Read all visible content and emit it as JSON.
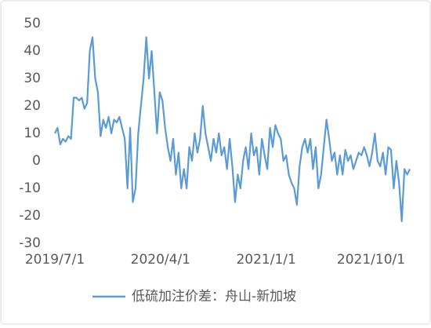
{
  "chart_data": {
    "type": "line",
    "x": [
      "2019/7/1",
      "2019/7/8",
      "2019/7/15",
      "2019/7/22",
      "2019/7/29",
      "2019/8/5",
      "2019/8/12",
      "2019/8/19",
      "2019/8/26",
      "2019/9/2",
      "2019/9/9",
      "2019/9/16",
      "2019/9/23",
      "2019/9/30",
      "2019/10/7",
      "2019/10/14",
      "2019/10/21",
      "2019/10/28",
      "2019/11/4",
      "2019/11/11",
      "2019/11/18",
      "2019/11/25",
      "2019/12/2",
      "2019/12/9",
      "2019/12/16",
      "2019/12/23",
      "2019/12/30",
      "2020/1/6",
      "2020/1/13",
      "2020/1/20",
      "2020/1/27",
      "2020/2/3",
      "2020/2/10",
      "2020/2/17",
      "2020/2/24",
      "2020/3/2",
      "2020/3/9",
      "2020/3/16",
      "2020/3/23",
      "2020/3/30",
      "2020/4/6",
      "2020/4/13",
      "2020/4/20",
      "2020/4/27",
      "2020/5/4",
      "2020/5/11",
      "2020/5/18",
      "2020/5/25",
      "2020/6/1",
      "2020/6/8",
      "2020/6/15",
      "2020/6/22",
      "2020/6/29",
      "2020/7/6",
      "2020/7/13",
      "2020/7/20",
      "2020/7/27",
      "2020/8/3",
      "2020/8/10",
      "2020/8/17",
      "2020/8/24",
      "2020/8/31",
      "2020/9/7",
      "2020/9/14",
      "2020/9/21",
      "2020/9/28",
      "2020/10/5",
      "2020/10/12",
      "2020/10/19",
      "2020/10/26",
      "2020/11/2",
      "2020/11/9",
      "2020/11/16",
      "2020/11/23",
      "2020/11/30",
      "2020/12/7",
      "2020/12/14",
      "2020/12/21",
      "2020/12/28",
      "2021/1/4",
      "2021/1/11",
      "2021/1/18",
      "2021/1/25",
      "2021/2/1",
      "2021/2/8",
      "2021/2/15",
      "2021/2/22",
      "2021/3/1",
      "2021/3/8",
      "2021/3/15",
      "2021/3/22",
      "2021/3/29",
      "2021/4/5",
      "2021/4/12",
      "2021/4/19",
      "2021/4/26",
      "2021/5/3",
      "2021/5/10",
      "2021/5/17",
      "2021/5/24",
      "2021/5/31",
      "2021/6/7",
      "2021/6/14",
      "2021/6/21",
      "2021/6/28",
      "2021/7/5",
      "2021/7/12",
      "2021/7/19",
      "2021/7/26",
      "2021/8/2",
      "2021/8/9",
      "2021/8/16",
      "2021/8/23",
      "2021/8/30",
      "2021/9/6",
      "2021/9/13",
      "2021/9/20",
      "2021/9/27",
      "2021/10/4",
      "2021/10/11",
      "2021/10/18",
      "2021/10/25",
      "2021/11/1",
      "2021/11/8",
      "2021/11/15",
      "2021/11/22",
      "2021/11/29",
      "2021/12/6",
      "2021/12/13",
      "2021/12/20",
      "2021/12/27",
      "2022/1/3",
      "2022/1/10"
    ],
    "series": [
      {
        "name": "低硫加注价差：舟山-新加坡",
        "color": "#5b9bd5",
        "values": [
          10,
          12,
          6,
          8,
          7,
          9,
          8,
          23,
          23,
          22,
          23,
          19,
          21,
          40,
          45,
          30,
          25,
          9,
          15,
          12,
          16,
          10,
          15,
          14,
          16,
          12,
          8,
          -10,
          12,
          -15,
          -10,
          10,
          20,
          30,
          45,
          30,
          40,
          25,
          10,
          25,
          22,
          12,
          5,
          0,
          8,
          -5,
          3,
          -10,
          -3,
          -10,
          5,
          0,
          10,
          3,
          8,
          20,
          10,
          5,
          0,
          8,
          3,
          10,
          2,
          5,
          -3,
          8,
          -2,
          -15,
          -5,
          -10,
          0,
          5,
          -3,
          10,
          2,
          5,
          -5,
          8,
          2,
          -3,
          12,
          5,
          13,
          10,
          8,
          0,
          2,
          -5,
          -8,
          -10,
          -16,
          -2,
          5,
          8,
          3,
          8,
          -3,
          5,
          -10,
          -5,
          5,
          15,
          8,
          0,
          3,
          -5,
          2,
          -5,
          4,
          0,
          2,
          -3,
          0,
          3,
          2,
          5,
          2,
          -2,
          3,
          10,
          0,
          -2,
          3,
          -5,
          5,
          4,
          -10,
          0,
          -8,
          -22,
          -3,
          -5,
          -3
        ]
      }
    ],
    "xlim": [
      "2019/7/1",
      "2022/1/10"
    ],
    "xticks": [
      "2019/7/1",
      "2020/4/1",
      "2021/1/1",
      "2021/10/1"
    ],
    "ylim": [
      -30,
      50
    ],
    "yticks": [
      -30,
      -20,
      -10,
      0,
      10,
      20,
      30,
      40,
      50
    ],
    "grid": false,
    "legend": "bottom"
  }
}
